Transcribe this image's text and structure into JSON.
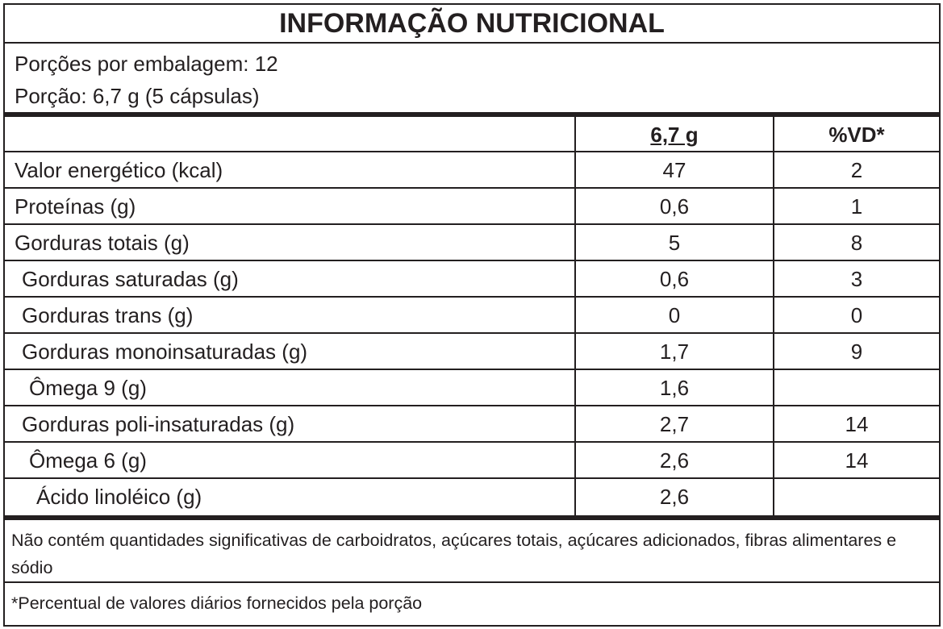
{
  "header": {
    "title": "INFORMAÇÃO NUTRICIONAL"
  },
  "serving": {
    "lines": [
      "Porções por embalagem: 12",
      "Porção: 6,7 g (5 cápsulas)"
    ]
  },
  "table": {
    "columns": [
      "6,7 g",
      "%VD*"
    ],
    "rows": [
      [
        "Valor energético (kcal)",
        "47",
        "2"
      ],
      [
        "Proteínas (g)",
        "0,6",
        "1"
      ],
      [
        "Gorduras totais (g)",
        "5",
        "8"
      ],
      [
        "Gorduras saturadas (g)",
        "0,6",
        "3"
      ],
      [
        "Gorduras trans (g)",
        "0",
        "0"
      ],
      [
        "Gorduras monoinsaturadas (g)",
        "1,7",
        "9"
      ],
      [
        "Ômega 9 (g)",
        "1,6"
      ],
      [
        "Gorduras poli-insaturadas (g)",
        "2,7",
        "14"
      ],
      [
        "Ômega 6 (g)",
        "2,6",
        "14"
      ],
      [
        "Ácido linoléico (g)",
        "2,6"
      ]
    ]
  },
  "footer": {
    "notes": [
      "Não contém quantidades significativas de carboidratos, açúcares totais, açúcares adicionados, fibras alimentares e sódio",
      "*Percentual de valores diários fornecidos pela porção"
    ]
  }
}
